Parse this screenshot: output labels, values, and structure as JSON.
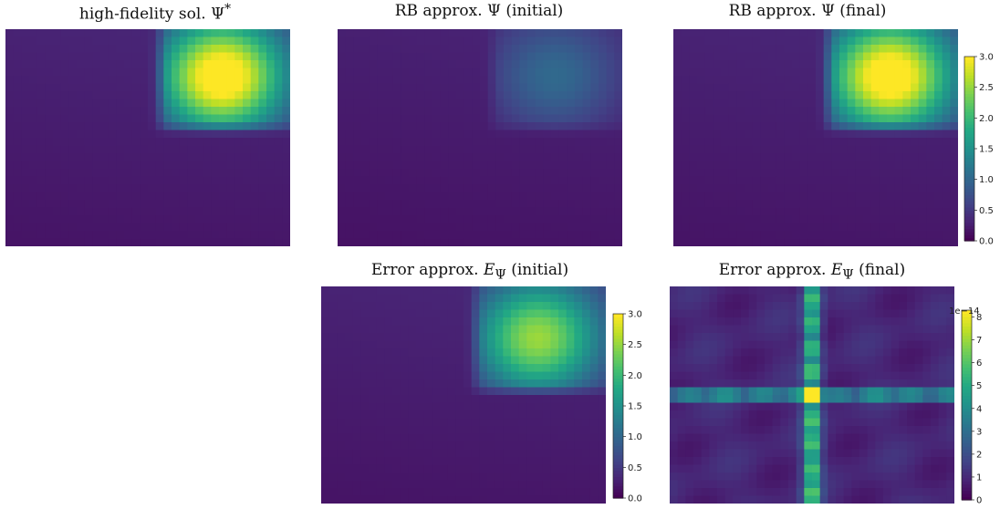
{
  "chart_data": [
    {
      "type": "heatmap",
      "title": "high-fidelity sol. Ψ*",
      "colormap": "viridis",
      "peak": 3.0,
      "peak_center": [
        0.76,
        0.22
      ],
      "hot_rect": [
        0.52,
        0.0,
        1.0,
        0.48
      ],
      "background_level": 0.35
    },
    {
      "type": "heatmap",
      "title": "RB approx. Ψ (initial)",
      "colormap": "viridis",
      "peak": 0.75,
      "peak_center": [
        0.76,
        0.22
      ],
      "hot_rect": [
        0.52,
        0.0,
        1.0,
        0.48
      ],
      "background_level": 0.32
    },
    {
      "type": "heatmap",
      "title": "RB approx. Ψ (final)",
      "colormap": "viridis",
      "peak": 3.0,
      "peak_center": [
        0.76,
        0.22
      ],
      "hot_rect": [
        0.52,
        0.0,
        1.0,
        0.48
      ],
      "background_level": 0.35,
      "colorbar": {
        "min": 0.0,
        "max": 3.0,
        "ticks": [
          "0.0",
          "0.5",
          "1.0",
          "1.5",
          "2.0",
          "2.5",
          "3.0"
        ]
      }
    },
    {
      "type": "heatmap",
      "title": "Error approx. E_Ψ (initial)",
      "colormap": "viridis",
      "peak": 2.25,
      "peak_center": [
        0.76,
        0.24
      ],
      "hot_rect": [
        0.52,
        0.0,
        1.0,
        0.5
      ],
      "background_level": 0.35,
      "colorbar": {
        "min": 0.0,
        "max": 3.0,
        "ticks": [
          "0.0",
          "0.5",
          "1.0",
          "1.5",
          "2.0",
          "2.5",
          "3.0"
        ]
      }
    },
    {
      "type": "heatmap",
      "title": "Error approx. E_Ψ (final)",
      "colormap": "viridis",
      "peak": 8.2,
      "center_line_x": 0.5,
      "center_line_y": 0.5,
      "colorbar": {
        "min": 0,
        "max": 8.3,
        "ticks": [
          "0",
          "1",
          "2",
          "3",
          "4",
          "5",
          "6",
          "7",
          "8"
        ],
        "exponent": "1e−14"
      }
    }
  ],
  "titles": {
    "t1_pre": "high-fidelity sol. ",
    "t1_sym": "Ψ",
    "t1_sup": "*",
    "t2_pre": "RB approx. ",
    "t2_sym": "Ψ",
    "t2_post": " (initial)",
    "t3_pre": "RB approx. ",
    "t3_sym": "Ψ",
    "t3_post": " (final)",
    "t4_pre": "Error approx. ",
    "t4_sym": "E",
    "t4_sub": "Ψ",
    "t4_post": " (initial)",
    "t5_pre": "Error approx. ",
    "t5_sym": "E",
    "t5_sub": "Ψ",
    "t5_post": " (final)"
  },
  "colors": {
    "viridis_low": "#440154",
    "viridis_high": "#fde725"
  }
}
